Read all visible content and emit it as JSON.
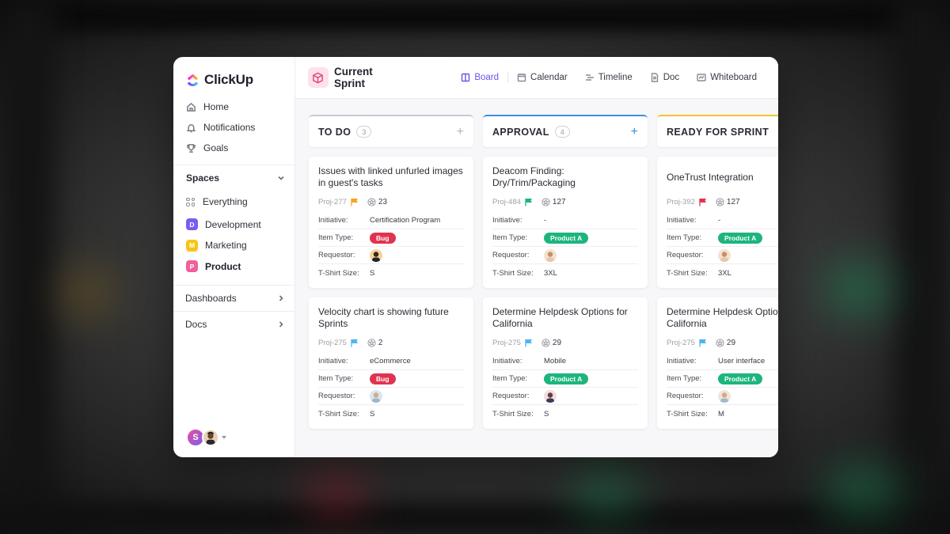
{
  "colors": {
    "accent": "#6a55e8",
    "bug": "#e0334f",
    "product_a": "#1db57e",
    "todo_border": "#c9c9d2",
    "approval_border": "#3d8de6",
    "ready_border": "#f2c230"
  },
  "app": {
    "logo_text": "ClickUp"
  },
  "sidebar": {
    "nav": [
      {
        "label": "Home",
        "icon": "home-icon"
      },
      {
        "label": "Notifications",
        "icon": "bell-icon"
      },
      {
        "label": "Goals",
        "icon": "trophy-icon"
      }
    ],
    "spaces_label": "Spaces",
    "spaces": [
      {
        "label": "Everything",
        "badge": "",
        "color": ""
      },
      {
        "label": "Development",
        "badge": "D",
        "color": "#7b5cf0"
      },
      {
        "label": "Marketing",
        "badge": "M",
        "color": "#f5c518"
      },
      {
        "label": "Product",
        "badge": "P",
        "color": "#f0609c"
      }
    ],
    "dashboards_label": "Dashboards",
    "docs_label": "Docs",
    "user_initial": "S"
  },
  "header": {
    "title": "Current Sprint",
    "views": [
      {
        "label": "Board",
        "icon": "board-icon"
      },
      {
        "label": "Calendar",
        "icon": "calendar-icon"
      },
      {
        "label": "Timeline",
        "icon": "timeline-icon"
      },
      {
        "label": "Doc",
        "icon": "doc-icon"
      },
      {
        "label": "Whiteboard",
        "icon": "whiteboard-icon"
      }
    ]
  },
  "field_labels": {
    "initiative": "Initiative:",
    "item_type": "Item Type:",
    "requestor": "Requestor:",
    "size": "T-Shirt Size:"
  },
  "columns": [
    {
      "title": "TO DO",
      "count": "3",
      "add": "+",
      "cards": [
        {
          "title": "Issues with linked unfurled images in guest's tasks",
          "id": "Proj-277",
          "flag": "#f5a524",
          "points": "23",
          "initiative": "Certification Program",
          "item_type": "Bug",
          "size": "S"
        },
        {
          "title": "Velocity chart is showing future Sprints",
          "id": "Proj-275",
          "flag": "#4cb6ee",
          "points": "2",
          "initiative": "eCommerce",
          "item_type": "Bug",
          "size": "S"
        }
      ]
    },
    {
      "title": "APPROVAL",
      "count": "4",
      "add": "+",
      "cards": [
        {
          "title": "Deacom Finding: Dry/Trim/Packaging",
          "id": "Proj-484",
          "flag": "#1db57e",
          "points": "127",
          "initiative": "-",
          "item_type": "Product A",
          "size": "3XL"
        },
        {
          "title": "Determine Helpdesk Options for California",
          "id": "Proj-275",
          "flag": "#4cb6ee",
          "points": "29",
          "initiative": "Mobile",
          "item_type": "Product A",
          "size": "S"
        }
      ]
    },
    {
      "title": "READY FOR SPRINT",
      "count": "",
      "add": "",
      "cards": [
        {
          "title": "OneTrust Integration",
          "id": "Proj-392",
          "flag": "#e0334f",
          "points": "127",
          "initiative": "-",
          "item_type": "Product A",
          "size": "3XL"
        },
        {
          "title": "Determine Helpdesk Options for California",
          "id": "Proj-275",
          "flag": "#4cb6ee",
          "points": "29",
          "initiative": "User interface",
          "item_type": "Product A",
          "size": "M"
        }
      ]
    }
  ]
}
